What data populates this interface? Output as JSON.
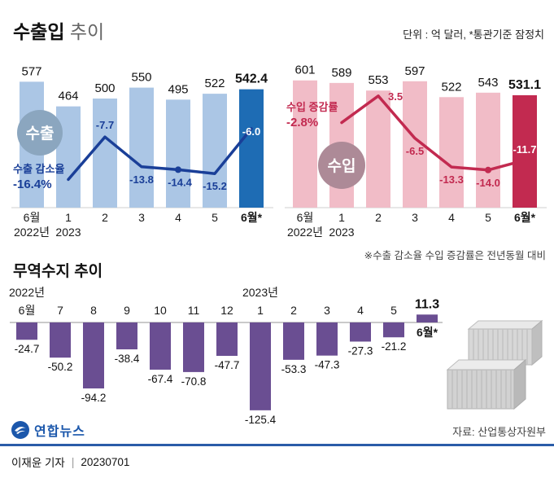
{
  "header": {
    "title_strong": "수출입",
    "title_rest": " 추이",
    "unit_note": "단위 : 억 달러, *통관기준 잠정치"
  },
  "footnote": "※수출 감소율 수입 증감률은 전년동월 대비",
  "balance_title": "무역수지 추이",
  "source": "자료: 산업통상자원부",
  "logo_text": "연합뉴스",
  "credit": {
    "author": "이재윤 기자",
    "sep": "|",
    "date": "20230701"
  },
  "chart_data": [
    {
      "id": "export",
      "type": "bar",
      "badge": "수출",
      "categories": [
        "6월",
        "1",
        "2",
        "3",
        "4",
        "5",
        "6월*"
      ],
      "year_labels": [
        {
          "text": "2022년",
          "index": 0
        },
        {
          "text": "2023",
          "index": 1
        }
      ],
      "values": [
        577,
        464,
        500,
        550,
        495,
        522,
        542.4
      ],
      "value_labels": [
        "577",
        "464",
        "500",
        "550",
        "495",
        "522",
        "542.4"
      ],
      "rate_series": {
        "name": "수출 감소율",
        "start_index": 1,
        "values": [
          -16.4,
          -7.7,
          -13.8,
          -14.4,
          -15.2,
          -6.0
        ],
        "labels": [
          "-16.4%",
          "-7.7",
          "-13.8",
          "-14.4",
          "-15.2",
          "-6.0"
        ]
      },
      "colors": {
        "bar": "#abc6e5",
        "bar_last": "#1e6cb4",
        "line": "#1a3f98",
        "badge": "#8ba6bf"
      }
    },
    {
      "id": "import",
      "type": "bar",
      "badge": "수입",
      "categories": [
        "6월",
        "1",
        "2",
        "3",
        "4",
        "5",
        "6월*"
      ],
      "year_labels": [
        {
          "text": "2022년",
          "index": 0
        },
        {
          "text": "2023",
          "index": 1
        }
      ],
      "values": [
        601,
        589,
        553,
        597,
        522,
        543,
        531.1
      ],
      "value_labels": [
        "601",
        "589",
        "553",
        "597",
        "522",
        "543",
        "531.1"
      ],
      "rate_series": {
        "name": "수입 증감률",
        "start_index": 1,
        "values": [
          -2.8,
          3.5,
          -6.5,
          -13.3,
          -14.0,
          -11.7
        ],
        "labels": [
          "-2.8%",
          "3.5",
          "-6.5",
          "-13.3",
          "-14.0",
          "-11.7"
        ]
      },
      "colors": {
        "bar": "#f1bcc7",
        "bar_last": "#c22a50",
        "line": "#c22a50",
        "badge": "#ad8a97"
      }
    },
    {
      "id": "balance",
      "type": "bar",
      "title": "무역수지 추이",
      "categories": [
        "6월",
        "7",
        "8",
        "9",
        "10",
        "11",
        "12",
        "1",
        "2",
        "3",
        "4",
        "5",
        "6월*"
      ],
      "year_labels": [
        {
          "text": "2022년",
          "index": 0
        },
        {
          "text": "2023년",
          "index": 7
        }
      ],
      "values": [
        -24.7,
        -50.2,
        -94.2,
        -38.4,
        -67.4,
        -70.8,
        -47.7,
        -125.4,
        -53.3,
        -47.3,
        -27.3,
        -21.2,
        11.3
      ],
      "value_labels": [
        "-24.7",
        "-50.2",
        "-94.2",
        "-38.4",
        "-67.4",
        "-70.8",
        "-47.7",
        "-125.4",
        "-53.3",
        "-47.3",
        "-27.3",
        "-21.2",
        "11.3"
      ],
      "colors": {
        "bar": "#6a4e92"
      }
    }
  ]
}
